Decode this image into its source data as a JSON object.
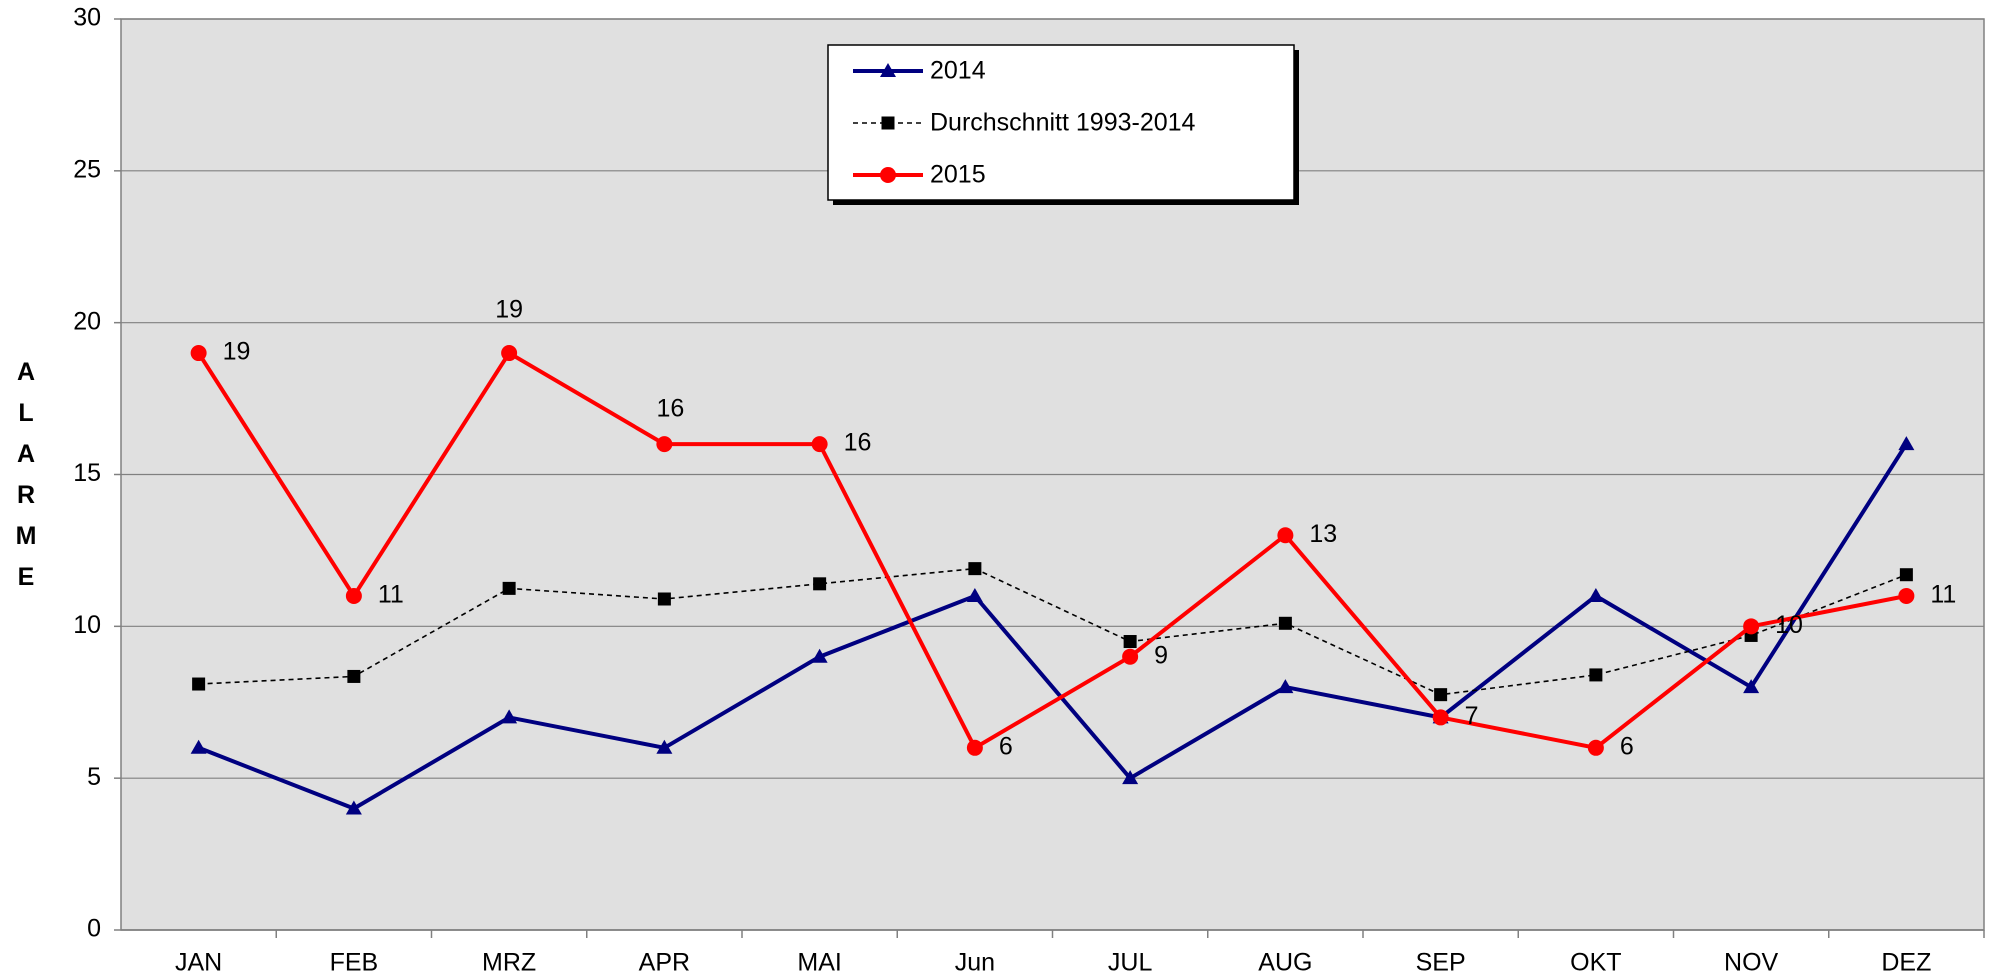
{
  "chart_data": {
    "type": "line",
    "y_label": "ALARME",
    "categories": [
      "JAN",
      "FEB",
      "MRZ",
      "APR",
      "MAI",
      "Jun",
      "JUL",
      "AUG",
      "SEP",
      "OKT",
      "NOV",
      "DEZ"
    ],
    "series": [
      {
        "name": "2014",
        "color": "#000080",
        "marker": "triangle",
        "values": [
          6,
          4,
          7,
          6,
          9,
          11,
          5,
          8,
          7,
          11,
          8,
          16
        ]
      },
      {
        "name": "Durchschnitt 1993-2014",
        "color": "#000000",
        "marker": "square",
        "dashed": true,
        "values": [
          8.1,
          8.35,
          11.25,
          10.9,
          11.4,
          11.9,
          9.5,
          10.1,
          7.75,
          8.4,
          9.7,
          11.7
        ]
      },
      {
        "name": "2015",
        "color": "#ff0000",
        "marker": "circle",
        "data_labels": true,
        "values": [
          19,
          11,
          19,
          16,
          16,
          6,
          9,
          13,
          7,
          6,
          10,
          11
        ]
      }
    ],
    "ylim": [
      0,
      30
    ],
    "yticks": [
      0,
      5,
      10,
      15,
      20,
      25,
      30
    ],
    "grid": true,
    "legend": "top-center"
  }
}
